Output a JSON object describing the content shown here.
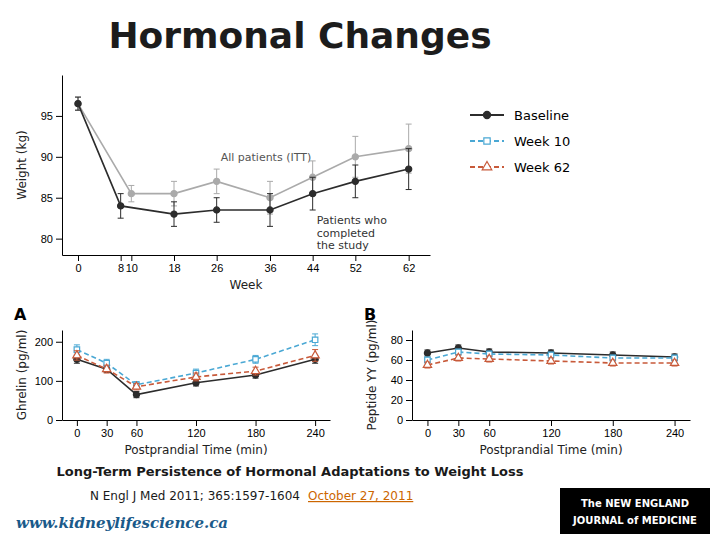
{
  "title": "Hormonal Changes",
  "annotations": [
    "Long-Term Persistence of Hormonal Adaptations to Weight Loss",
    "N Engl J Med 2011; 365:1597-1604",
    "October 27, 2011",
    "www.kidneylifescience.ca",
    "The NEW ENGLAND",
    "JOURNAL of MEDICINE"
  ],
  "chart_data": [
    {
      "type": "line",
      "xlabel": "Week",
      "ylabel": "Weight (kg)",
      "xlim": [
        -3,
        66
      ],
      "ylim": [
        78,
        100
      ],
      "xticks": [
        0,
        8,
        10,
        18,
        26,
        36,
        44,
        52,
        62
      ],
      "yticks": [
        80,
        85,
        90,
        95
      ],
      "grid": false,
      "legend": "inline",
      "series": [
        {
          "name": "All patients (ITT)",
          "color": "#aaaaaa",
          "marker": "circle",
          "line_style": "solid",
          "x": [
            0,
            10,
            18,
            26,
            36,
            44,
            52,
            62
          ],
          "values": [
            96.5,
            85.5,
            85.5,
            87.0,
            85.0,
            87.5,
            90.0,
            91.0
          ],
          "errors": [
            0.8,
            1.0,
            1.5,
            1.5,
            2.0,
            2.0,
            2.5,
            3.0
          ]
        },
        {
          "name": "Patients who\ncompleted\nthe study",
          "color": "#2c2c2c",
          "marker": "circle",
          "line_style": "solid",
          "x": [
            0,
            8,
            18,
            26,
            36,
            44,
            52,
            62
          ],
          "values": [
            96.5,
            84.0,
            83.0,
            83.5,
            83.5,
            85.5,
            87.0,
            88.5
          ],
          "errors": [
            0.8,
            1.5,
            1.5,
            1.5,
            2.0,
            2.0,
            2.0,
            2.5
          ]
        }
      ]
    },
    {
      "type": "line",
      "xlabel": "Postprandial Time (min)",
      "ylabel": "Ghrelin (pg/ml)",
      "annotations": [
        "A"
      ],
      "xlim": [
        -15,
        255
      ],
      "ylim": [
        0,
        230
      ],
      "xticks": [
        0,
        30,
        60,
        120,
        180,
        240
      ],
      "yticks": [
        0,
        100,
        200
      ],
      "grid": false,
      "legend": "upper right",
      "x": [
        0,
        30,
        60,
        120,
        180,
        240
      ],
      "series": [
        {
          "name": "Baseline",
          "color": "#2c2c2c",
          "marker": "circle",
          "line_style": "solid",
          "values": [
            155,
            130,
            65,
            95,
            115,
            155
          ],
          "errors": [
            10,
            8,
            8,
            8,
            8,
            10
          ]
        },
        {
          "name": "Week 10",
          "color": "#4aa8d4",
          "marker": "square",
          "line_style": "dashed",
          "values": [
            180,
            145,
            90,
            120,
            155,
            205
          ],
          "errors": [
            12,
            10,
            8,
            10,
            10,
            15
          ]
        },
        {
          "name": "Week 62",
          "color": "#c85a3a",
          "marker": "triangle",
          "line_style": "dashed",
          "values": [
            165,
            130,
            85,
            110,
            125,
            165
          ],
          "errors": [
            12,
            10,
            8,
            10,
            10,
            15
          ]
        }
      ]
    },
    {
      "type": "line",
      "xlabel": "Postprandial Time (min)",
      "ylabel": "Peptide YY (pg/ml)",
      "annotations": [
        "B"
      ],
      "xlim": [
        -15,
        255
      ],
      "ylim": [
        0,
        90
      ],
      "xticks": [
        0,
        30,
        60,
        120,
        180,
        240
      ],
      "yticks": [
        0,
        20,
        40,
        60,
        80
      ],
      "grid": false,
      "legend": false,
      "x": [
        0,
        30,
        60,
        120,
        180,
        240
      ],
      "series": [
        {
          "name": "Baseline",
          "color": "#2c2c2c",
          "marker": "circle",
          "line_style": "solid",
          "values": [
            67,
            72,
            68,
            67,
            65,
            63
          ],
          "errors": [
            3,
            3,
            3,
            3,
            3,
            3
          ]
        },
        {
          "name": "Week 10",
          "color": "#4aa8d4",
          "marker": "square",
          "line_style": "dashed",
          "values": [
            60,
            68,
            66,
            65,
            62,
            62
          ],
          "errors": [
            3,
            3,
            3,
            3,
            3,
            3
          ]
        },
        {
          "name": "Week 62",
          "color": "#c85a3a",
          "marker": "triangle",
          "line_style": "dashed",
          "values": [
            55,
            62,
            61,
            59,
            57,
            57
          ],
          "errors": [
            3,
            3,
            3,
            3,
            3,
            3
          ]
        }
      ]
    }
  ]
}
